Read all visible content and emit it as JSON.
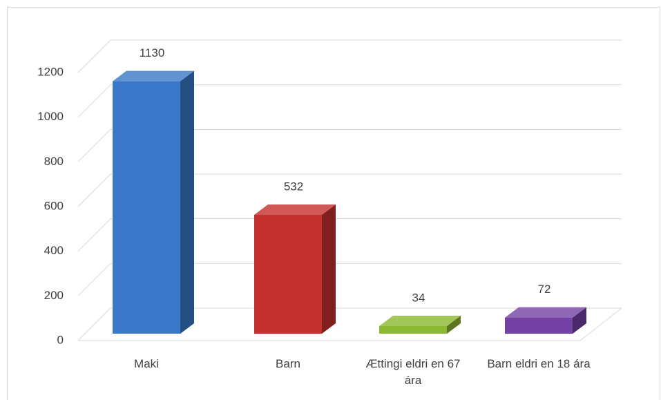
{
  "chart_data": {
    "type": "bar3d",
    "categories": [
      "Maki",
      "Barn",
      "Ættingi eldri en 67 ára",
      "Barn eldri en 18 ára"
    ],
    "values": [
      1130,
      532,
      34,
      72
    ],
    "colors": [
      "#3a78c9",
      "#c4302e",
      "#8cb833",
      "#7241a3"
    ],
    "ylim": [
      0,
      1200
    ],
    "yticks": [
      0,
      200,
      400,
      600,
      800,
      1000,
      1200
    ],
    "grid": true
  }
}
